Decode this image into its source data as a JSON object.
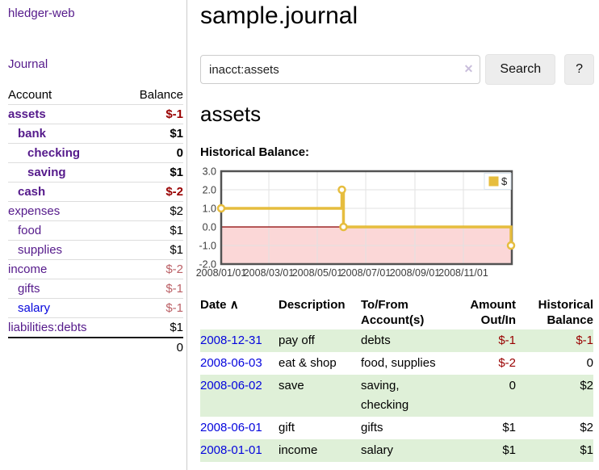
{
  "colors": {
    "purple": "#551a8b",
    "link-blue": "#0505dd",
    "neg-strong": "#990000",
    "neg-soft": "#bb6066",
    "row-green": "#dff0d8",
    "gold": "#e6bd3e",
    "pink": "#fbd7d7",
    "zero-red": "#8b0000",
    "grid": "#e2e2e2",
    "frame": "#525252",
    "btn-bg": "#ededed",
    "divider": "#cccccc",
    "row-line": "#dddddd"
  },
  "sidebar": {
    "app_title": "hledger-web",
    "journal_link": "Journal",
    "accounts": {
      "header_account": "Account",
      "header_balance": "Balance",
      "rows": [
        {
          "name": "assets",
          "balance": "$-1",
          "depth": 1,
          "emphasis": true,
          "tone": "neg-strong"
        },
        {
          "name": "bank",
          "balance": "$1",
          "depth": 2,
          "emphasis": true
        },
        {
          "name": "checking",
          "balance": "0",
          "depth": 3,
          "emphasis": true
        },
        {
          "name": "saving",
          "balance": "$1",
          "depth": 3,
          "emphasis": true
        },
        {
          "name": "cash",
          "balance": "$-2",
          "depth": 2,
          "emphasis": true,
          "tone": "neg-strong"
        },
        {
          "name": "expenses",
          "balance": "$2",
          "depth": 1
        },
        {
          "name": "food",
          "balance": "$1",
          "depth": 2
        },
        {
          "name": "supplies",
          "balance": "$1",
          "depth": 2
        },
        {
          "name": "income",
          "balance": "$-2",
          "depth": 1,
          "tone": "neg-soft"
        },
        {
          "name": "gifts",
          "balance": "$-1",
          "depth": 2,
          "tone": "neg-soft"
        },
        {
          "name": "salary",
          "balance": "$-1",
          "depth": 2,
          "tone": "neg-soft",
          "visited": false
        },
        {
          "name": "liabilities:debts",
          "balance": "$1",
          "depth": 1
        }
      ],
      "total": "0"
    }
  },
  "main": {
    "title": "sample.journal",
    "search": {
      "value": "inacct:assets",
      "clear_icon": "✕",
      "button_label": "Search",
      "help_label": "?"
    },
    "account_heading": "assets",
    "chart_heading": "Historical Balance:"
  },
  "chart_data": {
    "type": "line",
    "title": "Historical Balance",
    "step": true,
    "xlim": [
      "2008-01-01",
      "2009-01-01"
    ],
    "ylim": [
      -2,
      3
    ],
    "x_ticks": [
      "2008/01/01",
      "2008/03/01",
      "2008/05/01",
      "2008/07/01",
      "2008/09/01",
      "2008/11/01"
    ],
    "y_ticks": [
      "3.0",
      "2.0",
      "1.0",
      "0.0",
      "-1.0",
      "-2.0"
    ],
    "grid": true,
    "negative_region_shaded": true,
    "legend": {
      "label": "$",
      "position": "top-right"
    },
    "series": [
      {
        "name": "$",
        "points": [
          [
            "2008-01-01",
            1
          ],
          [
            "2008-06-01",
            2
          ],
          [
            "2008-06-03",
            0
          ],
          [
            "2008-12-31",
            -1
          ]
        ]
      }
    ]
  },
  "register": {
    "headers": {
      "date": "Date",
      "sort_icon": "∧",
      "description": "Description",
      "accounts": "To/From Account(s)",
      "amount": "Amount Out/In",
      "balance": "Historical Balance"
    },
    "rows": [
      {
        "date": "2008-12-31",
        "description": "pay off",
        "accounts": "debts",
        "amount": "$-1",
        "balance": "$-1",
        "amount_tone": "neg-strong",
        "balance_tone": "neg-strong"
      },
      {
        "date": "2008-06-03",
        "description": "eat & shop",
        "accounts": "food, supplies",
        "amount": "$-2",
        "balance": "0",
        "amount_tone": "neg-strong"
      },
      {
        "date": "2008-06-02",
        "description": "save",
        "accounts": "saving, checking",
        "amount": "0",
        "balance": "$2"
      },
      {
        "date": "2008-06-01",
        "description": "gift",
        "accounts": "gifts",
        "amount": "$1",
        "balance": "$2"
      },
      {
        "date": "2008-01-01",
        "description": "income",
        "accounts": "salary",
        "amount": "$1",
        "balance": "$1"
      }
    ]
  }
}
